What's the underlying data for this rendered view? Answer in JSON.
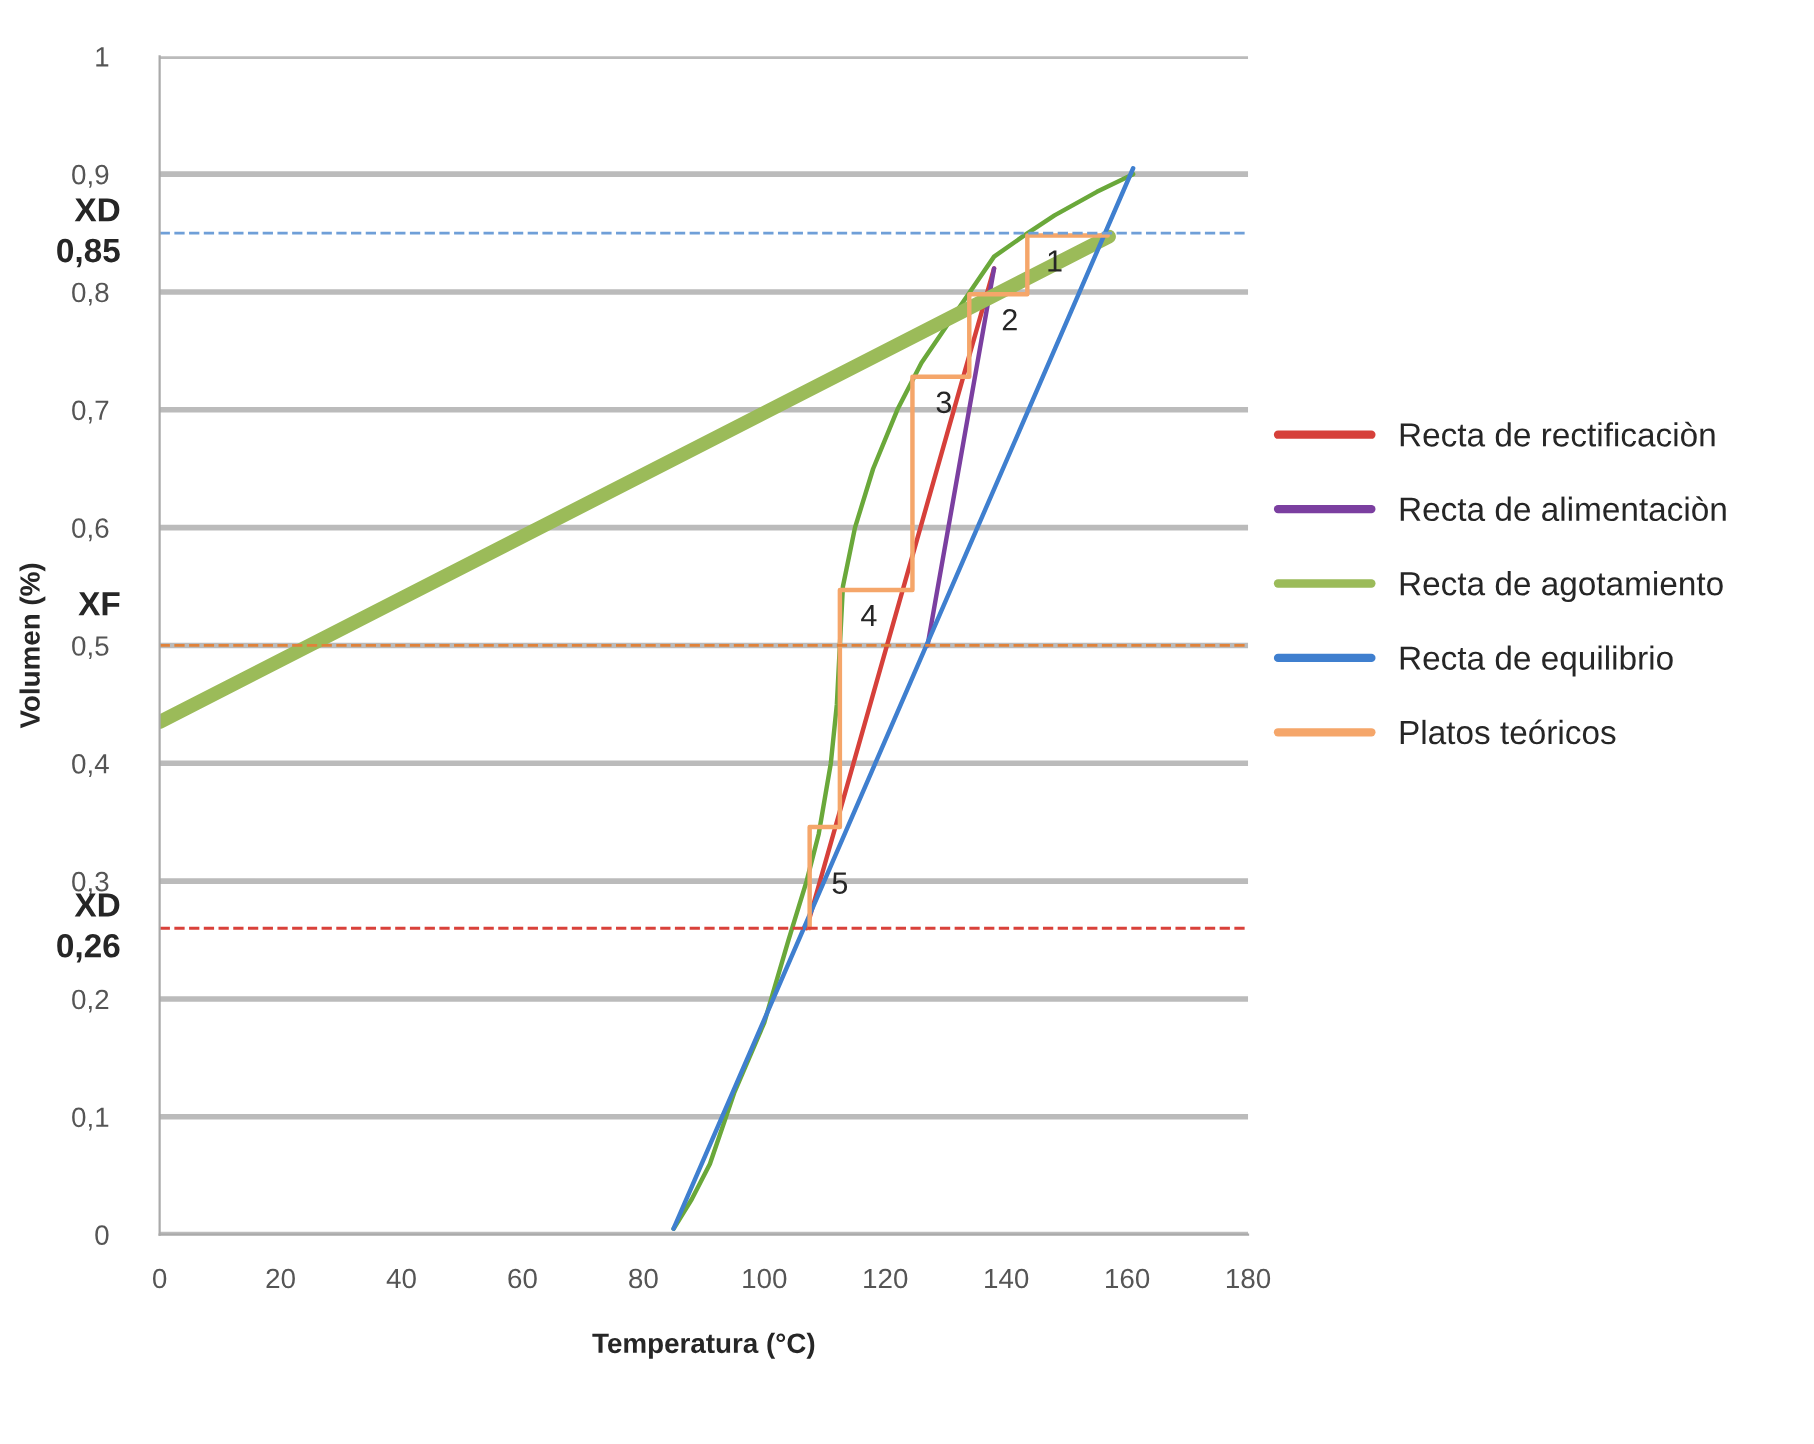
{
  "chart_data": {
    "type": "line",
    "xlabel": "Temperatura (°C)",
    "ylabel": "Volumen (%)",
    "xlim": [
      0,
      180
    ],
    "xticks": [
      0,
      20,
      40,
      60,
      80,
      100,
      120,
      140,
      160,
      180
    ],
    "ylim": [
      0,
      1
    ],
    "yticks": [
      {
        "value": 0,
        "label": "0"
      },
      {
        "value": 0.1,
        "label": "0,1"
      },
      {
        "value": 0.2,
        "label": "0,2"
      },
      {
        "value": 0.3,
        "label": "0,3"
      },
      {
        "value": 0.4,
        "label": "0,4"
      },
      {
        "value": 0.5,
        "label": "0,5"
      },
      {
        "value": 0.6,
        "label": "0,6"
      },
      {
        "value": 0.7,
        "label": "0,7"
      },
      {
        "value": 0.8,
        "label": "0,8"
      },
      {
        "value": 0.9,
        "label": "0,9"
      },
      {
        "value": 1,
        "label": "1"
      }
    ],
    "grid": "y",
    "legend": "right",
    "marker": "none",
    "line_style": "solid",
    "series": [
      {
        "x": [
          85,
          88,
          91,
          95,
          100,
          104,
          107,
          109,
          110,
          111,
          112,
          112.5,
          113,
          115,
          118,
          122,
          126,
          130,
          134,
          138,
          143,
          148,
          155,
          161
        ],
        "values": [
          0.005,
          0.03,
          0.06,
          0.12,
          0.18,
          0.25,
          0.3,
          0.34,
          0.37,
          0.4,
          0.45,
          0.5,
          0.55,
          0.6,
          0.65,
          0.7,
          0.74,
          0.77,
          0.8,
          0.83,
          0.848,
          0.865,
          0.885,
          0.9
        ],
        "color": "#6aa83a"
      },
      {
        "name": "Recta de rectificaciòn",
        "x": [
          107,
          138
        ],
        "values": [
          0.26,
          0.82
        ],
        "color": "#d6403a"
      },
      {
        "name": "Recta de alimentaciòn",
        "x": [
          127,
          138
        ],
        "values": [
          0.5,
          0.82
        ],
        "color": "#7b3fa0"
      },
      {
        "name": "Recta de agotamiento",
        "x": [
          0,
          157
        ],
        "values": [
          0.435,
          0.847
        ],
        "color": "#9bbb59"
      },
      {
        "name": "Recta de equilibrio",
        "x": [
          85,
          161
        ],
        "values": [
          0.005,
          0.905
        ],
        "color": "#3f7fcf"
      },
      {
        "name": "Platos teóricos",
        "x": [
          156.8,
          143.5,
          143.5,
          133.9,
          133.9,
          124.5,
          124.5,
          112.5,
          112.5,
          107.5,
          107.5
        ],
        "values": [
          0.848,
          0.848,
          0.798,
          0.798,
          0.728,
          0.728,
          0.547,
          0.547,
          0.346,
          0.346,
          0.26
        ],
        "color": "#f5a66a"
      }
    ],
    "ref_lines": [
      {
        "axis": "y",
        "value": 0.85,
        "label": "XD\n0,85",
        "color": "#6f9fd8",
        "line_style": "dashed"
      },
      {
        "axis": "y",
        "value": 0.5,
        "label": "XF",
        "color": "#e0823a",
        "line_style": "dashed"
      },
      {
        "axis": "y",
        "value": 0.26,
        "label": "XD\n0,26",
        "color": "#d9413a",
        "line_style": "dashed"
      }
    ],
    "annotations": [
      {
        "text": "1",
        "x": 148,
        "y": 0.848
      },
      {
        "text": "2",
        "x": 140.6,
        "y": 0.798
      },
      {
        "text": "3",
        "x": 129.7,
        "y": 0.728
      },
      {
        "text": "4",
        "x": 117.3,
        "y": 0.547
      },
      {
        "text": "5",
        "x": 112.5,
        "y": 0.32
      }
    ]
  }
}
